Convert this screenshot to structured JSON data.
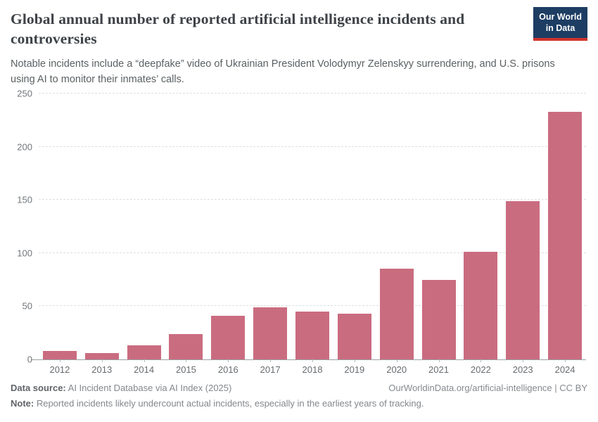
{
  "chart_data": {
    "type": "bar",
    "title": "Global annual number of reported artificial intelligence incidents and controversies",
    "subtitle": "Notable incidents include a “deepfake” video of Ukrainian President Volodymyr Zelenskyy surrendering, and U.S. prisons using AI to monitor their inmates’ calls.",
    "categories": [
      "2012",
      "2013",
      "2014",
      "2015",
      "2016",
      "2017",
      "2018",
      "2019",
      "2020",
      "2021",
      "2022",
      "2023",
      "2024"
    ],
    "values": [
      8,
      6,
      13,
      24,
      41,
      49,
      45,
      43,
      85,
      75,
      101,
      149,
      233
    ],
    "xlabel": "",
    "ylabel": "",
    "ylim": [
      0,
      250
    ],
    "yticks": [
      0,
      50,
      100,
      150,
      200,
      250
    ],
    "grid": true,
    "legend_position": "none",
    "bar_color": "#ca6c80"
  },
  "logo": {
    "line1": "Our World",
    "line2": "in Data",
    "bg_color": "#1d3d63",
    "accent_color": "#d0342c"
  },
  "footer": {
    "source_label": "Data source:",
    "source_text": " AI Incident Database via AI Index (2025)",
    "link_text": "OurWorldinData.org/artificial-intelligence | CC BY",
    "note_label": "Note:",
    "note_text": " Reported incidents likely undercount actual incidents, especially in the earliest years of tracking."
  },
  "colors": {
    "title_text": "#3d4247",
    "subtitle_text": "#5b6063",
    "axis_text": "#71767a",
    "gridline": "#dcdfe1",
    "bar": "#ca6c80"
  }
}
